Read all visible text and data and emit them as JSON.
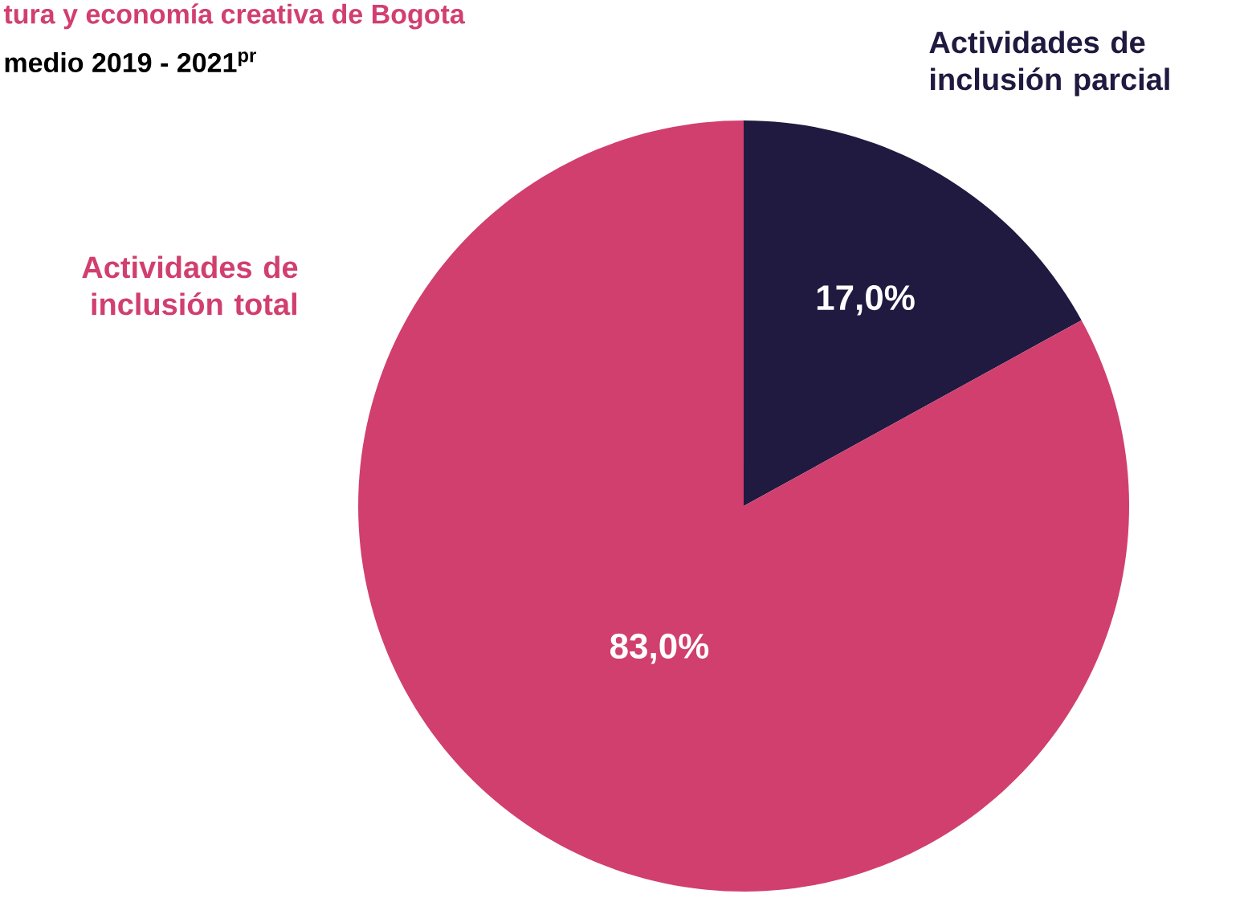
{
  "chart_data": {
    "type": "pie",
    "title": "tura y economía creativa de Bogota",
    "subtitle": "medio 2019 - 2021$^{pr}$",
    "categories": [
      "Actividades de inclusión parcial",
      "Actividades de inclusión total"
    ],
    "values": [
      17,
      83
    ],
    "colors": [
      "#201a40",
      "#d13f6f"
    ],
    "value_labels": [
      "17,0%",
      "83,0%"
    ]
  }
}
